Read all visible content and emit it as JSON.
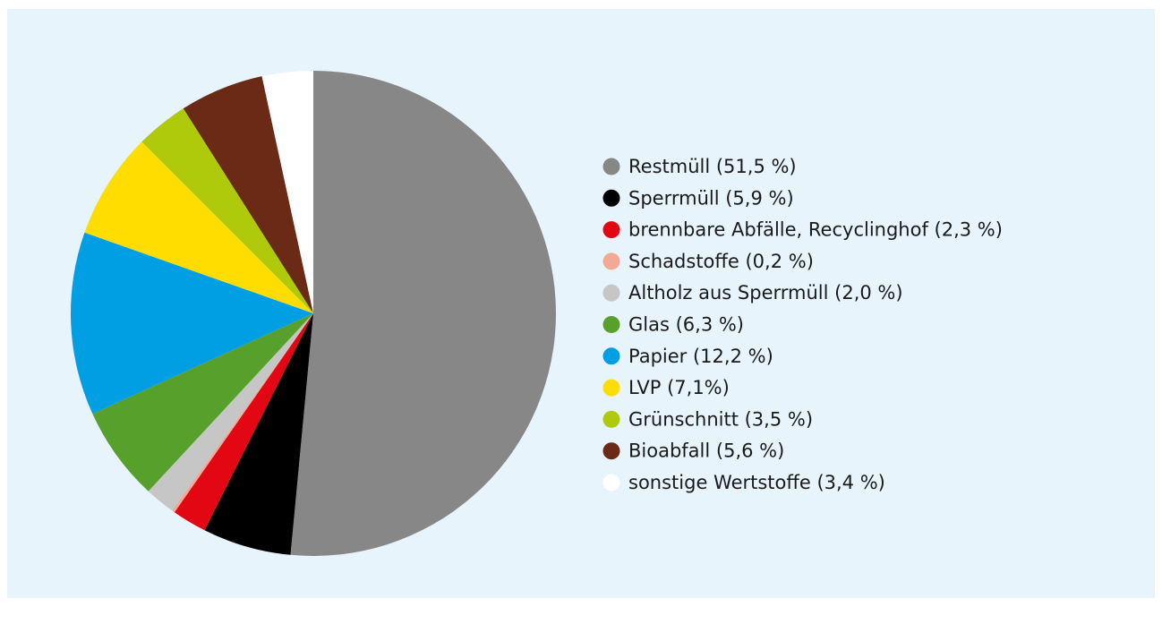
{
  "chart_data": {
    "type": "pie",
    "categories": [
      "Restmüll (51,5 %)",
      "Sperrmüll (5,9 %)",
      "brennbare Abfälle, Recyclinghof (2,3 %)",
      "Schadstoffe (0,2 %)",
      "Altholz aus Sperrmüll (2,0 %)",
      "Glas (6,3 %)",
      "Papier (12,2 %)",
      "LVP (7,1%)",
      "Grünschnitt (3,5 %)",
      "Bioabfall (5,6 %)",
      "sonstige Wertstoffe (3,4 %)"
    ],
    "values": [
      51.5,
      5.9,
      2.3,
      0.2,
      2.0,
      6.3,
      12.2,
      7.1,
      3.5,
      5.6,
      3.4
    ],
    "colors": [
      "#878787",
      "#000000",
      "#e30613",
      "#f4a996",
      "#c6c6c6",
      "#58a02c",
      "#009fe3",
      "#ffdd00",
      "#afca0b",
      "#6b2a15",
      "#ffffff"
    ],
    "legend": "right"
  }
}
